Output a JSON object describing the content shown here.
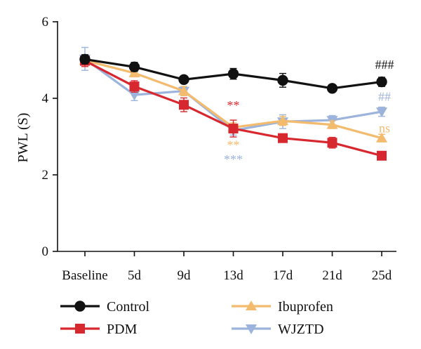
{
  "chart_data": {
    "type": "line",
    "title": "",
    "xlabel": "",
    "ylabel": "PWL (S)",
    "ylim": [
      0,
      6
    ],
    "yticks": [
      0,
      2,
      4,
      6
    ],
    "categories": [
      "Baseline",
      "5d",
      "9d",
      "13d",
      "17d",
      "21d",
      "25d"
    ],
    "legend_position": "bottom",
    "grid": false,
    "series": [
      {
        "name": "Control",
        "color": "#111111",
        "marker": "circle",
        "values": [
          5.02,
          4.82,
          4.49,
          4.64,
          4.47,
          4.26,
          4.43
        ],
        "errors": [
          0.12,
          0.12,
          0.08,
          0.14,
          0.18,
          0.08,
          0.12
        ]
      },
      {
        "name": "PDM",
        "color": "#d7282f",
        "marker": "square",
        "values": [
          4.98,
          4.31,
          3.83,
          3.21,
          2.96,
          2.84,
          2.5
        ],
        "errors": [
          0.15,
          0.15,
          0.18,
          0.22,
          0.08,
          0.14,
          0.08
        ]
      },
      {
        "name": "Ibuprofen",
        "color": "#f3bb6e",
        "marker": "triangle-up",
        "values": [
          4.99,
          4.66,
          4.19,
          3.24,
          3.41,
          3.31,
          2.96
        ],
        "errors": [
          0.12,
          0.1,
          0.12,
          0.12,
          0.12,
          0.1,
          0.1
        ]
      },
      {
        "name": "WJZTD",
        "color": "#9cb3dc",
        "marker": "triangle-down",
        "values": [
          5.03,
          4.09,
          4.19,
          3.16,
          3.39,
          3.43,
          3.65
        ],
        "errors": [
          0.3,
          0.15,
          0.12,
          0.12,
          0.18,
          0.12,
          0.12
        ]
      }
    ],
    "annotations": [
      {
        "category": "13d",
        "value": 3.82,
        "text": "**",
        "color": "#d7282f"
      },
      {
        "category": "13d",
        "value": 2.78,
        "text": "**",
        "color": "#f3bb6e"
      },
      {
        "category": "13d",
        "value": 2.4,
        "text": "***",
        "color": "#9cb3dc"
      },
      {
        "category": "25d",
        "value": 4.88,
        "text": "###",
        "color": "#111111"
      },
      {
        "category": "25d",
        "value": 4.05,
        "text": "##",
        "color": "#9cb3dc"
      },
      {
        "category": "25d",
        "value": 3.22,
        "text": "ns",
        "color": "#f3bb6e"
      }
    ]
  }
}
